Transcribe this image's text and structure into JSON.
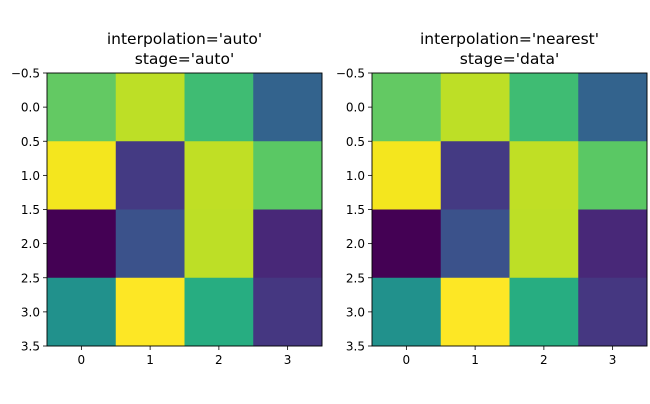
{
  "chart_data": [
    {
      "type": "heatmap",
      "title_lines": [
        "interpolation='auto'",
        "stage='auto'"
      ],
      "colormap": "viridis",
      "xticks": [
        "0",
        "1",
        "2",
        "3"
      ],
      "yticks": [
        "−0.5",
        "0.0",
        "0.5",
        "1.0",
        "1.5",
        "2.0",
        "2.5",
        "3.0",
        "3.5"
      ],
      "xlim": [
        -0.5,
        3.5
      ],
      "ylim": [
        3.5,
        -0.5
      ],
      "values": [
        [
          0.75,
          0.9,
          0.68,
          0.3
        ],
        [
          0.98,
          0.12,
          0.9,
          0.73
        ],
        [
          0.0,
          0.22,
          0.9,
          0.07
        ],
        [
          0.5,
          1.0,
          0.6,
          0.12
        ]
      ],
      "cell_colors": [
        [
          "#63c963",
          "#bddf26",
          "#3fbc73",
          "#33638d"
        ],
        [
          "#f4e61e",
          "#443a83",
          "#c0df25",
          "#5ac864"
        ],
        [
          "#440154",
          "#3b528b",
          "#bddf26",
          "#482878"
        ],
        [
          "#21918c",
          "#fde725",
          "#27ad81",
          "#453781"
        ]
      ]
    },
    {
      "type": "heatmap",
      "title_lines": [
        "interpolation='nearest'",
        "stage='data'"
      ],
      "colormap": "viridis",
      "xticks": [
        "0",
        "1",
        "2",
        "3"
      ],
      "yticks": [
        "−0.5",
        "0.0",
        "0.5",
        "1.0",
        "1.5",
        "2.0",
        "2.5",
        "3.0",
        "3.5"
      ],
      "xlim": [
        -0.5,
        3.5
      ],
      "ylim": [
        3.5,
        -0.5
      ],
      "values": [
        [
          0.75,
          0.9,
          0.68,
          0.3
        ],
        [
          0.98,
          0.12,
          0.9,
          0.73
        ],
        [
          0.0,
          0.22,
          0.9,
          0.07
        ],
        [
          0.5,
          1.0,
          0.6,
          0.12
        ]
      ],
      "cell_colors": [
        [
          "#63c963",
          "#bddf26",
          "#3fbc73",
          "#33638d"
        ],
        [
          "#f4e61e",
          "#443a83",
          "#c0df25",
          "#5ac864"
        ],
        [
          "#440154",
          "#3b528b",
          "#bddf26",
          "#482878"
        ],
        [
          "#21918c",
          "#fde725",
          "#27ad81",
          "#453781"
        ]
      ]
    }
  ]
}
